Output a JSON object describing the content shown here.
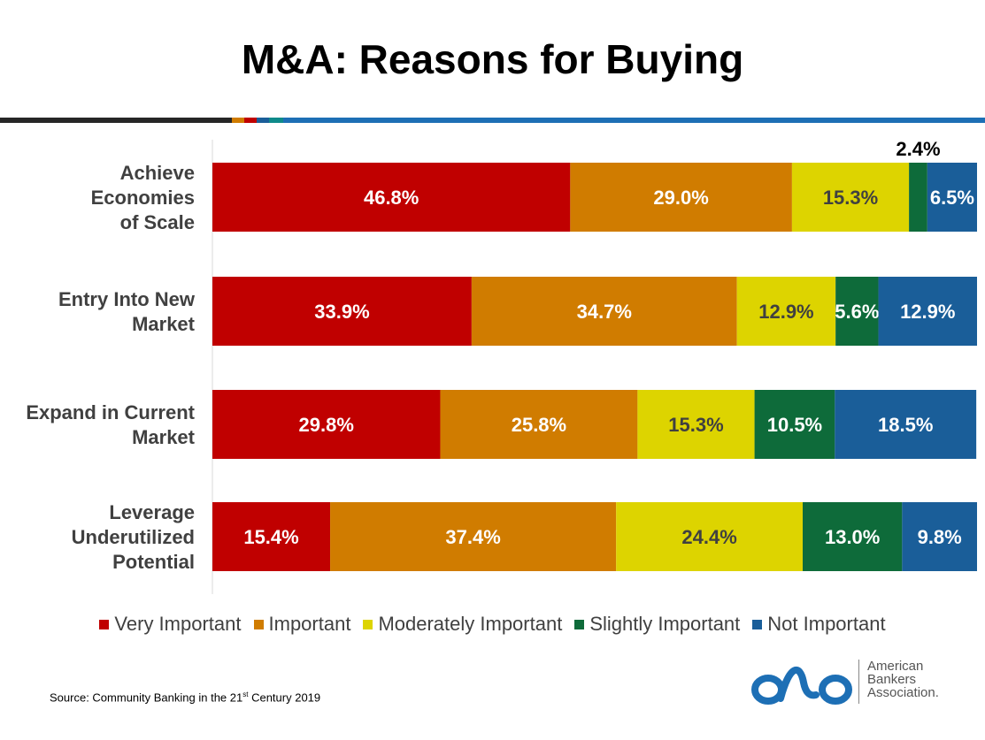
{
  "title": "M&A: Reasons for Buying",
  "source": {
    "prefix": "Source: Community  Banking in the 21",
    "superscript": "st",
    "suffix": " Century 2019"
  },
  "logo": {
    "line1": "American",
    "line2": "Bankers",
    "line3": "Association."
  },
  "colors": {
    "very_important": "#C00000",
    "important": "#D07C00",
    "moderately_important": "#DDD400",
    "slightly_important": "#0E6B3A",
    "not_important": "#1A5E99",
    "logo_blue": "#1D6FB5"
  },
  "chart_data": {
    "type": "bar",
    "orientation": "horizontal",
    "stacked": true,
    "title": "M&A: Reasons for Buying",
    "categories": [
      [
        "Achieve",
        "Economies",
        "of Scale"
      ],
      [
        "Entry Into New",
        "Market"
      ],
      [
        "Expand in Current",
        "Market"
      ],
      [
        "Leverage",
        "Underutilized",
        "Potential"
      ]
    ],
    "series": [
      {
        "name": "Very Important",
        "color": "#C00000",
        "values": [
          46.8,
          33.9,
          29.8,
          15.4
        ],
        "labels": [
          "46.8%",
          "33.9%",
          "29.8%",
          "15.4%"
        ],
        "label_color": "#ffffff"
      },
      {
        "name": "Important",
        "color": "#D07C00",
        "values": [
          29.0,
          34.7,
          25.8,
          37.4
        ],
        "labels": [
          "29.0%",
          "34.7%",
          "25.8%",
          "37.4%"
        ],
        "label_color": "#ffffff"
      },
      {
        "name": "Moderately Important",
        "color": "#DDD400",
        "values": [
          15.3,
          12.9,
          15.3,
          24.4
        ],
        "labels": [
          "15.3%",
          "12.9%",
          "15.3%",
          "24.4%"
        ],
        "label_color": "#404040"
      },
      {
        "name": "Slightly Important",
        "color": "#0E6B3A",
        "values": [
          2.4,
          5.6,
          10.5,
          13.0
        ],
        "labels": [
          "2.4%",
          "5.6%",
          "10.5%",
          "13.0%"
        ],
        "label_color": "#ffffff"
      },
      {
        "name": "Not Important",
        "color": "#1A5E99",
        "values": [
          6.5,
          12.9,
          18.5,
          9.8
        ],
        "labels": [
          "6.5%",
          "12.9%",
          "18.5%",
          "9.8%"
        ],
        "label_color": "#ffffff"
      }
    ],
    "xlim": [
      0,
      100
    ],
    "legend": "bottom",
    "grid": false
  }
}
